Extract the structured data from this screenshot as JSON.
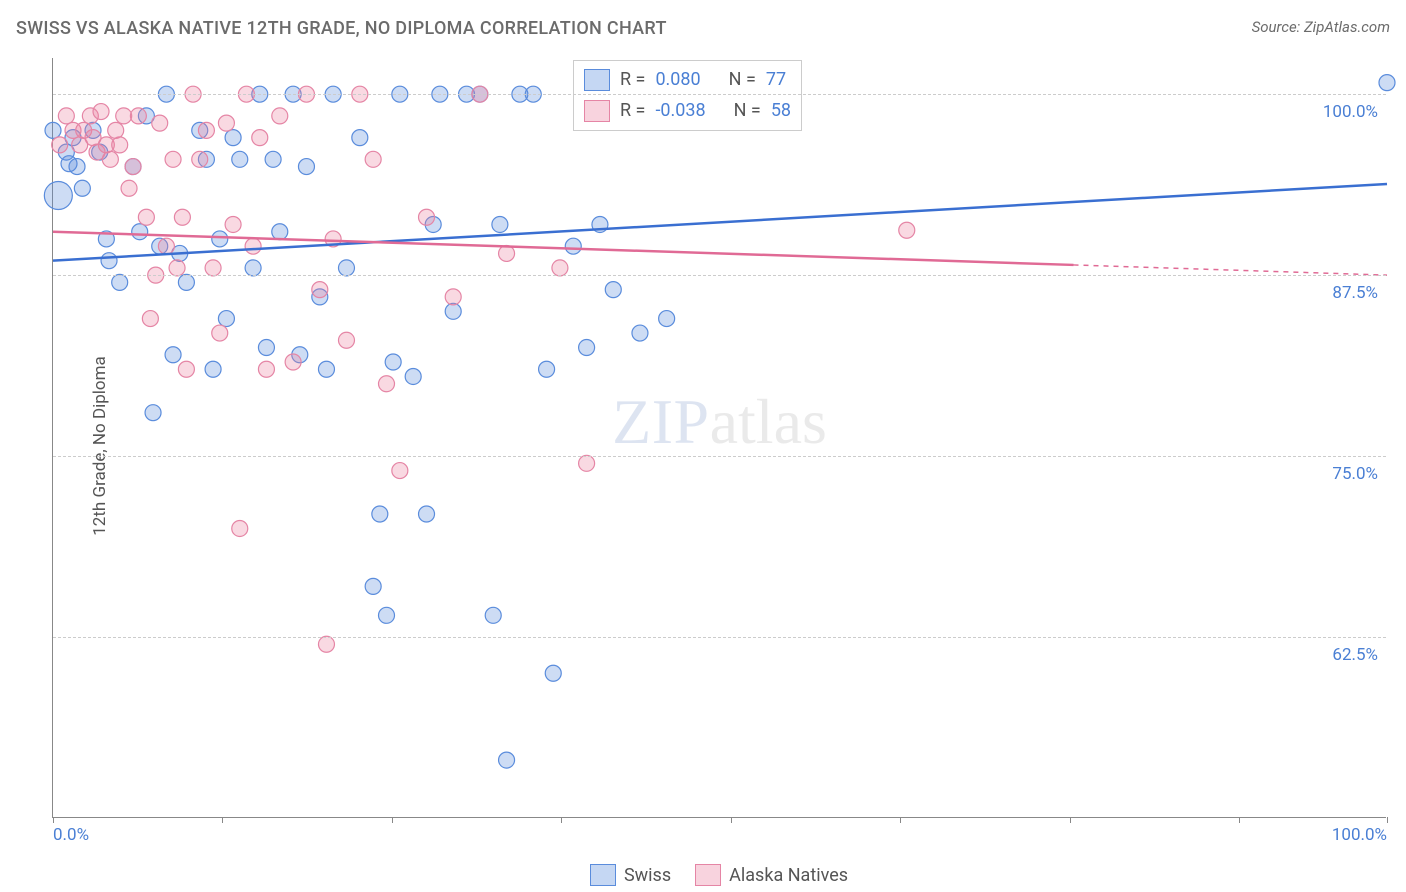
{
  "title": "SWISS VS ALASKA NATIVE 12TH GRADE, NO DIPLOMA CORRELATION CHART",
  "source": "Source: ZipAtlas.com",
  "y_axis_label": "12th Grade, No Diploma",
  "watermark_zip": "ZIP",
  "watermark_atlas": "atlas",
  "chart": {
    "type": "scatter",
    "xlim": [
      0,
      100
    ],
    "ylim": [
      50,
      102.5
    ],
    "y_ticks": [
      62.5,
      75.0,
      87.5,
      100.0
    ],
    "y_tick_labels": [
      "62.5%",
      "75.0%",
      "87.5%",
      "100.0%"
    ],
    "x_ticks": [
      0,
      12.7,
      25.4,
      38.1,
      50.8,
      63.5,
      76.2,
      88.9,
      100
    ],
    "x_tick_labels": {
      "0": "0.0%",
      "100": "100.0%"
    },
    "background_color": "#ffffff",
    "grid_color": "#cccccc",
    "grid_dash": true,
    "series": [
      {
        "name": "Swiss",
        "marker_fill": "rgba(90,140,220,0.30)",
        "marker_stroke": "#5a8cdc",
        "marker_radius": 8,
        "line_color": "#3a6fd1",
        "line_width": 2.5,
        "r_value": "0.080",
        "n_value": "77",
        "trend": {
          "x1": 0,
          "y1": 88.5,
          "x2": 100,
          "y2": 93.8,
          "solid_to_x": 100
        },
        "points": [
          [
            0,
            97.5
          ],
          [
            1,
            96.0
          ],
          [
            1.2,
            95.2
          ],
          [
            1.5,
            97.0
          ],
          [
            1.8,
            95.0
          ],
          [
            2.2,
            93.5
          ],
          [
            0.4,
            93.0,
            14
          ],
          [
            3.0,
            97.5
          ],
          [
            3.5,
            96.0
          ],
          [
            4.0,
            90.0
          ],
          [
            4.2,
            88.5
          ],
          [
            5.0,
            87.0
          ],
          [
            6.0,
            95.0
          ],
          [
            6.5,
            90.5
          ],
          [
            7.0,
            98.5
          ],
          [
            7.5,
            78.0
          ],
          [
            8.0,
            89.5
          ],
          [
            8.5,
            100.0
          ],
          [
            9.0,
            82.0
          ],
          [
            9.5,
            89.0
          ],
          [
            10.0,
            87.0
          ],
          [
            11.0,
            97.5
          ],
          [
            11.5,
            95.5
          ],
          [
            12.0,
            81.0
          ],
          [
            12.5,
            90.0
          ],
          [
            13.0,
            84.5
          ],
          [
            13.5,
            97.0
          ],
          [
            14.0,
            95.5
          ],
          [
            15.0,
            88.0
          ],
          [
            15.5,
            100.0
          ],
          [
            16.0,
            82.5
          ],
          [
            16.5,
            95.5
          ],
          [
            17.0,
            90.5
          ],
          [
            18.0,
            100.0
          ],
          [
            18.5,
            82.0
          ],
          [
            19.0,
            95.0
          ],
          [
            20.0,
            86.0
          ],
          [
            20.5,
            81.0
          ],
          [
            21.0,
            100.0
          ],
          [
            22.0,
            88.0
          ],
          [
            23.0,
            97.0
          ],
          [
            24.0,
            66.0
          ],
          [
            24.5,
            71.0
          ],
          [
            25.0,
            64.0
          ],
          [
            25.5,
            81.5
          ],
          [
            26.0,
            100.0
          ],
          [
            27.0,
            80.5
          ],
          [
            28.0,
            71.0
          ],
          [
            28.5,
            91.0
          ],
          [
            29.0,
            100.0
          ],
          [
            30.0,
            85.0
          ],
          [
            31.0,
            100.0
          ],
          [
            32.0,
            100.0
          ],
          [
            33.0,
            64.0
          ],
          [
            33.5,
            91.0
          ],
          [
            34.0,
            54.0
          ],
          [
            35.0,
            100.0
          ],
          [
            36.0,
            100.0
          ],
          [
            37.0,
            81.0
          ],
          [
            37.5,
            60.0
          ],
          [
            39.0,
            89.5
          ],
          [
            40.0,
            82.5
          ],
          [
            41.0,
            91.0
          ],
          [
            42.0,
            86.5
          ],
          [
            43.0,
            100.0
          ],
          [
            44.0,
            83.5
          ],
          [
            45.0,
            100.0
          ],
          [
            46.0,
            84.5
          ],
          [
            47.0,
            100.0
          ],
          [
            48.0,
            100.0
          ],
          [
            49.0,
            100.0
          ],
          [
            50.0,
            100.0
          ],
          [
            100.0,
            100.8
          ]
        ]
      },
      {
        "name": "Alaska Natives",
        "marker_fill": "rgba(236,130,160,0.30)",
        "marker_stroke": "#e585a5",
        "marker_radius": 8,
        "line_color": "#e06a95",
        "line_width": 2.5,
        "r_value": "-0.038",
        "n_value": "58",
        "trend": {
          "x1": 0,
          "y1": 90.5,
          "x2": 100,
          "y2": 87.5,
          "solid_to_x": 76.5
        },
        "points": [
          [
            0.5,
            96.5
          ],
          [
            1.0,
            98.5
          ],
          [
            1.5,
            97.5
          ],
          [
            2.0,
            96.5
          ],
          [
            2.3,
            97.5
          ],
          [
            2.8,
            98.5
          ],
          [
            3.0,
            97.0
          ],
          [
            3.3,
            96.0
          ],
          [
            3.6,
            98.8
          ],
          [
            4.0,
            96.5
          ],
          [
            4.3,
            95.5
          ],
          [
            4.7,
            97.5
          ],
          [
            5.0,
            96.5
          ],
          [
            5.3,
            98.5
          ],
          [
            5.7,
            93.5
          ],
          [
            6.0,
            95.0
          ],
          [
            6.4,
            98.5
          ],
          [
            7.0,
            91.5
          ],
          [
            7.3,
            84.5
          ],
          [
            7.7,
            87.5
          ],
          [
            8.0,
            98.0
          ],
          [
            8.5,
            89.5
          ],
          [
            9.0,
            95.5
          ],
          [
            9.3,
            88.0
          ],
          [
            9.7,
            91.5
          ],
          [
            10.0,
            81.0
          ],
          [
            10.5,
            100.0
          ],
          [
            11.0,
            95.5
          ],
          [
            11.5,
            97.5
          ],
          [
            12.0,
            88.0
          ],
          [
            12.5,
            83.5
          ],
          [
            13.0,
            98.0
          ],
          [
            13.5,
            91.0
          ],
          [
            14.0,
            70.0
          ],
          [
            14.5,
            100.0
          ],
          [
            15.0,
            89.5
          ],
          [
            15.5,
            97.0
          ],
          [
            16.0,
            81.0
          ],
          [
            17.0,
            98.5
          ],
          [
            18.0,
            81.5
          ],
          [
            19.0,
            100.0
          ],
          [
            20.0,
            86.5
          ],
          [
            20.5,
            62.0
          ],
          [
            21.0,
            90.0
          ],
          [
            22.0,
            83.0
          ],
          [
            23.0,
            100.0
          ],
          [
            24.0,
            95.5
          ],
          [
            25.0,
            80.0
          ],
          [
            26.0,
            74.0
          ],
          [
            28.0,
            91.5
          ],
          [
            30.0,
            86.0
          ],
          [
            32.0,
            100.0
          ],
          [
            34.0,
            89.0
          ],
          [
            38.0,
            88.0
          ],
          [
            40.0,
            74.5
          ],
          [
            44.0,
            100.0
          ],
          [
            64.0,
            90.6
          ]
        ]
      }
    ]
  },
  "legend_box": {
    "r_label": "R =",
    "n_label": "N ="
  },
  "bottom_legend": {
    "items": [
      "Swiss",
      "Alaska Natives"
    ]
  }
}
